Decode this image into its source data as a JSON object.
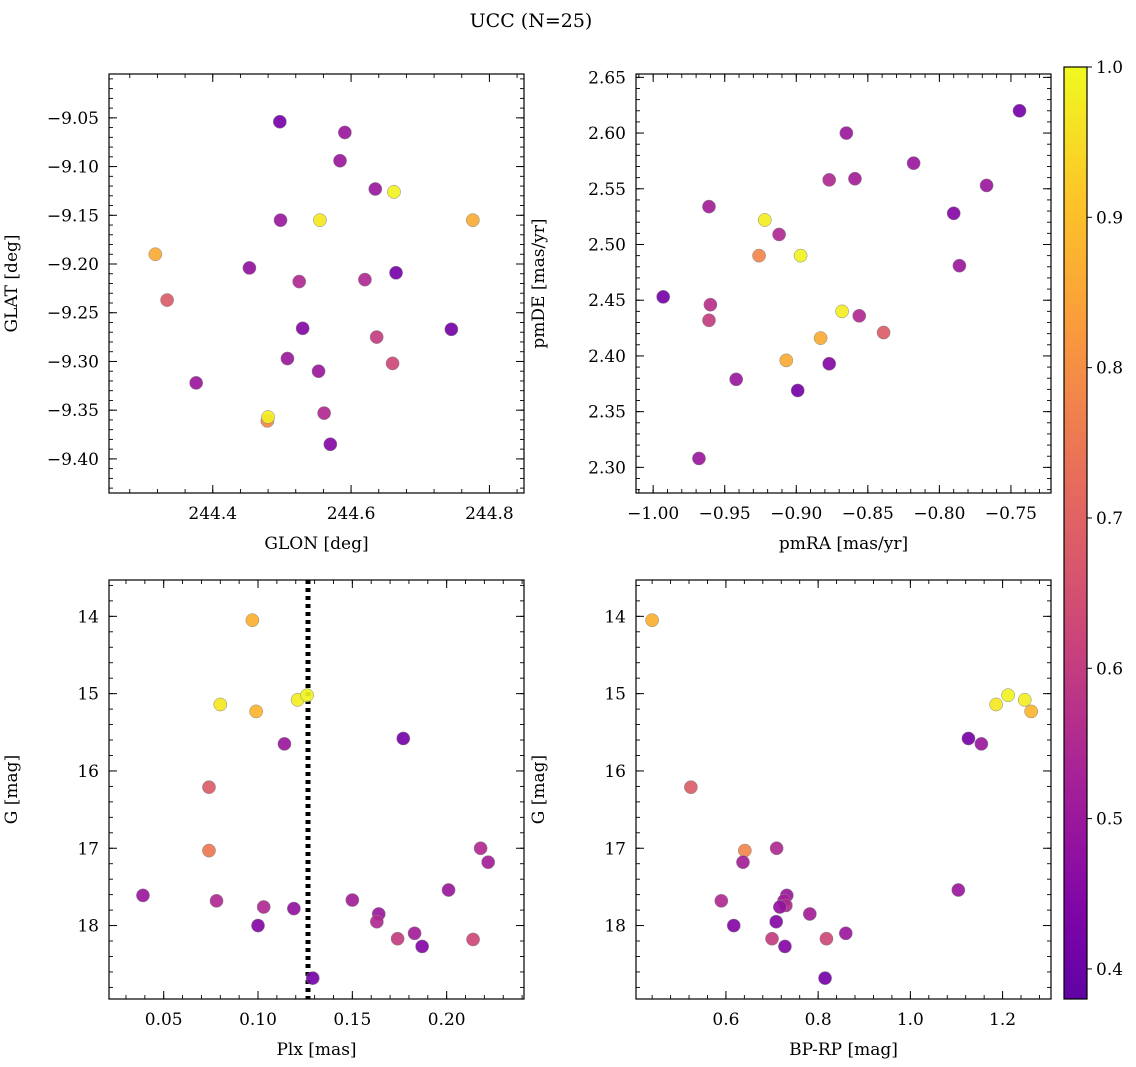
{
  "figure": {
    "title": "UCC (N=25)"
  },
  "colorbar": {
    "min": 0.38,
    "max": 1.0,
    "ticks": [
      0.4,
      0.5,
      0.6,
      0.7,
      0.8,
      0.9,
      1.0
    ],
    "tick_labels": [
      "0.4",
      "0.5",
      "0.6",
      "0.7",
      "0.8",
      "0.9",
      "1.0"
    ],
    "colormap": "plasma"
  },
  "chart_data": [
    {
      "type": "scatter",
      "xlabel": "GLON [deg]",
      "ylabel": "GLAT [deg]",
      "xlim": [
        244.25,
        244.85
      ],
      "ylim": [
        -9.435,
        -9.005
      ],
      "xticks": [
        244.4,
        244.6,
        244.8
      ],
      "xtick_labels": [
        "244.4",
        "244.6",
        "244.8"
      ],
      "yticks": [
        -9.05,
        -9.1,
        -9.15,
        -9.2,
        -9.25,
        -9.3,
        -9.35,
        -9.4
      ],
      "ytick_labels": [
        "−9.05",
        "−9.10",
        "−9.15",
        "−9.20",
        "−9.25",
        "−9.30",
        "−9.35",
        "−9.40"
      ],
      "points": [
        {
          "x": 244.497,
          "y": -9.054,
          "c": 0.42
        },
        {
          "x": 244.591,
          "y": -9.065,
          "c": 0.5
        },
        {
          "x": 244.584,
          "y": -9.094,
          "c": 0.5
        },
        {
          "x": 244.635,
          "y": -9.123,
          "c": 0.5
        },
        {
          "x": 244.498,
          "y": -9.155,
          "c": 0.5
        },
        {
          "x": 244.453,
          "y": -9.204,
          "c": 0.48
        },
        {
          "x": 244.525,
          "y": -9.218,
          "c": 0.55
        },
        {
          "x": 244.62,
          "y": -9.216,
          "c": 0.55
        },
        {
          "x": 244.665,
          "y": -9.209,
          "c": 0.42
        },
        {
          "x": 244.53,
          "y": -9.266,
          "c": 0.45
        },
        {
          "x": 244.745,
          "y": -9.267,
          "c": 0.42
        },
        {
          "x": 244.637,
          "y": -9.275,
          "c": 0.6
        },
        {
          "x": 244.508,
          "y": -9.297,
          "c": 0.5
        },
        {
          "x": 244.553,
          "y": -9.31,
          "c": 0.5
        },
        {
          "x": 244.66,
          "y": -9.302,
          "c": 0.63
        },
        {
          "x": 244.376,
          "y": -9.322,
          "c": 0.5
        },
        {
          "x": 244.334,
          "y": -9.237,
          "c": 0.68
        },
        {
          "x": 244.561,
          "y": -9.353,
          "c": 0.55
        },
        {
          "x": 244.479,
          "y": -9.361,
          "c": 0.78
        },
        {
          "x": 244.57,
          "y": -9.385,
          "c": 0.45
        },
        {
          "x": 244.317,
          "y": -9.19,
          "c": 0.86
        },
        {
          "x": 244.776,
          "y": -9.155,
          "c": 0.86
        },
        {
          "x": 244.48,
          "y": -9.357,
          "c": 0.98
        },
        {
          "x": 244.555,
          "y": -9.155,
          "c": 0.97
        },
        {
          "x": 244.662,
          "y": -9.126,
          "c": 0.99
        }
      ]
    },
    {
      "type": "scatter",
      "xlabel": "pmRA [mas/yr]",
      "ylabel": "pmDE [mas/yr]",
      "xlim": [
        -1.012,
        -0.722
      ],
      "ylim": [
        2.277,
        2.653
      ],
      "xticks": [
        -1.0,
        -0.95,
        -0.9,
        -0.85,
        -0.8,
        -0.75
      ],
      "xtick_labels": [
        "−1.00",
        "−0.95",
        "−0.90",
        "−0.85",
        "−0.80",
        "−0.75"
      ],
      "yticks": [
        2.3,
        2.35,
        2.4,
        2.45,
        2.5,
        2.55,
        2.6,
        2.65
      ],
      "ytick_labels": [
        "2.30",
        "2.35",
        "2.40",
        "2.45",
        "2.50",
        "2.55",
        "2.60",
        "2.65"
      ],
      "points": [
        {
          "x": -0.744,
          "y": 2.62,
          "c": 0.42
        },
        {
          "x": -0.865,
          "y": 2.6,
          "c": 0.5
        },
        {
          "x": -0.818,
          "y": 2.573,
          "c": 0.5
        },
        {
          "x": -0.877,
          "y": 2.558,
          "c": 0.55
        },
        {
          "x": -0.859,
          "y": 2.559,
          "c": 0.52
        },
        {
          "x": -0.767,
          "y": 2.553,
          "c": 0.5
        },
        {
          "x": -0.961,
          "y": 2.534,
          "c": 0.52
        },
        {
          "x": -0.79,
          "y": 2.528,
          "c": 0.45
        },
        {
          "x": -0.922,
          "y": 2.522,
          "c": 0.98
        },
        {
          "x": -0.912,
          "y": 2.509,
          "c": 0.55
        },
        {
          "x": -0.926,
          "y": 2.49,
          "c": 0.78
        },
        {
          "x": -0.897,
          "y": 2.49,
          "c": 0.99
        },
        {
          "x": -0.786,
          "y": 2.481,
          "c": 0.5
        },
        {
          "x": -0.993,
          "y": 2.453,
          "c": 0.42
        },
        {
          "x": -0.96,
          "y": 2.446,
          "c": 0.57
        },
        {
          "x": -0.868,
          "y": 2.44,
          "c": 0.98
        },
        {
          "x": -0.856,
          "y": 2.436,
          "c": 0.55
        },
        {
          "x": -0.961,
          "y": 2.432,
          "c": 0.6
        },
        {
          "x": -0.839,
          "y": 2.421,
          "c": 0.68
        },
        {
          "x": -0.883,
          "y": 2.416,
          "c": 0.86
        },
        {
          "x": -0.907,
          "y": 2.396,
          "c": 0.86
        },
        {
          "x": -0.877,
          "y": 2.393,
          "c": 0.45
        },
        {
          "x": -0.942,
          "y": 2.379,
          "c": 0.5
        },
        {
          "x": -0.899,
          "y": 2.369,
          "c": 0.42
        },
        {
          "x": -0.968,
          "y": 2.308,
          "c": 0.5
        }
      ]
    },
    {
      "type": "scatter",
      "xlabel": "Plx [mas]",
      "ylabel": "G [mag]",
      "xlim": [
        0.021,
        0.241
      ],
      "ylim": [
        18.95,
        13.53
      ],
      "xticks": [
        0.05,
        0.1,
        0.15,
        0.2
      ],
      "xtick_labels": [
        "0.05",
        "0.10",
        "0.15",
        "0.20"
      ],
      "yticks": [
        14,
        15,
        16,
        17,
        18
      ],
      "ytick_labels": [
        "14",
        "15",
        "16",
        "17",
        "18"
      ],
      "vline": 0.1265,
      "points": [
        {
          "x": 0.097,
          "y": 14.05,
          "c": 0.87
        },
        {
          "x": 0.08,
          "y": 15.14,
          "c": 0.97
        },
        {
          "x": 0.099,
          "y": 15.23,
          "c": 0.88
        },
        {
          "x": 0.121,
          "y": 15.08,
          "c": 0.98
        },
        {
          "x": 0.126,
          "y": 15.02,
          "c": 0.99
        },
        {
          "x": 0.114,
          "y": 15.65,
          "c": 0.5
        },
        {
          "x": 0.177,
          "y": 15.58,
          "c": 0.42
        },
        {
          "x": 0.074,
          "y": 16.21,
          "c": 0.68
        },
        {
          "x": 0.074,
          "y": 17.03,
          "c": 0.75
        },
        {
          "x": 0.218,
          "y": 17.0,
          "c": 0.55
        },
        {
          "x": 0.222,
          "y": 17.18,
          "c": 0.52
        },
        {
          "x": 0.039,
          "y": 17.61,
          "c": 0.5
        },
        {
          "x": 0.078,
          "y": 17.68,
          "c": 0.55
        },
        {
          "x": 0.103,
          "y": 17.76,
          "c": 0.55
        },
        {
          "x": 0.119,
          "y": 17.78,
          "c": 0.48
        },
        {
          "x": 0.15,
          "y": 17.67,
          "c": 0.52
        },
        {
          "x": 0.164,
          "y": 17.85,
          "c": 0.5
        },
        {
          "x": 0.163,
          "y": 17.95,
          "c": 0.55
        },
        {
          "x": 0.201,
          "y": 17.54,
          "c": 0.5
        },
        {
          "x": 0.1,
          "y": 18.0,
          "c": 0.45
        },
        {
          "x": 0.183,
          "y": 18.1,
          "c": 0.52
        },
        {
          "x": 0.174,
          "y": 18.17,
          "c": 0.6
        },
        {
          "x": 0.187,
          "y": 18.27,
          "c": 0.45
        },
        {
          "x": 0.214,
          "y": 18.18,
          "c": 0.63
        },
        {
          "x": 0.129,
          "y": 18.68,
          "c": 0.42
        }
      ]
    },
    {
      "type": "scatter",
      "xlabel": "BP-RP [mag]",
      "ylabel": "G [mag]",
      "xlim": [
        0.405,
        1.305
      ],
      "ylim": [
        18.95,
        13.53
      ],
      "xticks": [
        0.6,
        0.8,
        1.0,
        1.2
      ],
      "xtick_labels": [
        "0.6",
        "0.8",
        "1.0",
        "1.2"
      ],
      "yticks": [
        14,
        15,
        16,
        17,
        18
      ],
      "ytick_labels": [
        "14",
        "15",
        "16",
        "17",
        "18"
      ],
      "points": [
        {
          "x": 0.44,
          "y": 14.05,
          "c": 0.87
        },
        {
          "x": 1.212,
          "y": 15.02,
          "c": 0.99
        },
        {
          "x": 1.248,
          "y": 15.08,
          "c": 0.98
        },
        {
          "x": 1.186,
          "y": 15.14,
          "c": 0.97
        },
        {
          "x": 1.262,
          "y": 15.23,
          "c": 0.88
        },
        {
          "x": 1.126,
          "y": 15.58,
          "c": 0.42
        },
        {
          "x": 1.154,
          "y": 15.65,
          "c": 0.5
        },
        {
          "x": 0.524,
          "y": 16.21,
          "c": 0.68
        },
        {
          "x": 0.641,
          "y": 17.03,
          "c": 0.78
        },
        {
          "x": 0.71,
          "y": 17.0,
          "c": 0.55
        },
        {
          "x": 0.637,
          "y": 17.18,
          "c": 0.52
        },
        {
          "x": 1.104,
          "y": 17.54,
          "c": 0.5
        },
        {
          "x": 0.732,
          "y": 17.61,
          "c": 0.5
        },
        {
          "x": 0.59,
          "y": 17.68,
          "c": 0.55
        },
        {
          "x": 0.726,
          "y": 17.68,
          "c": 0.52
        },
        {
          "x": 0.73,
          "y": 17.74,
          "c": 0.55
        },
        {
          "x": 0.717,
          "y": 17.76,
          "c": 0.48
        },
        {
          "x": 0.782,
          "y": 17.85,
          "c": 0.52
        },
        {
          "x": 0.709,
          "y": 17.95,
          "c": 0.45
        },
        {
          "x": 0.617,
          "y": 18.0,
          "c": 0.45
        },
        {
          "x": 0.86,
          "y": 18.1,
          "c": 0.5
        },
        {
          "x": 0.7,
          "y": 18.17,
          "c": 0.6
        },
        {
          "x": 0.818,
          "y": 18.17,
          "c": 0.63
        },
        {
          "x": 0.728,
          "y": 18.27,
          "c": 0.45
        },
        {
          "x": 0.815,
          "y": 18.68,
          "c": 0.42
        }
      ]
    }
  ]
}
